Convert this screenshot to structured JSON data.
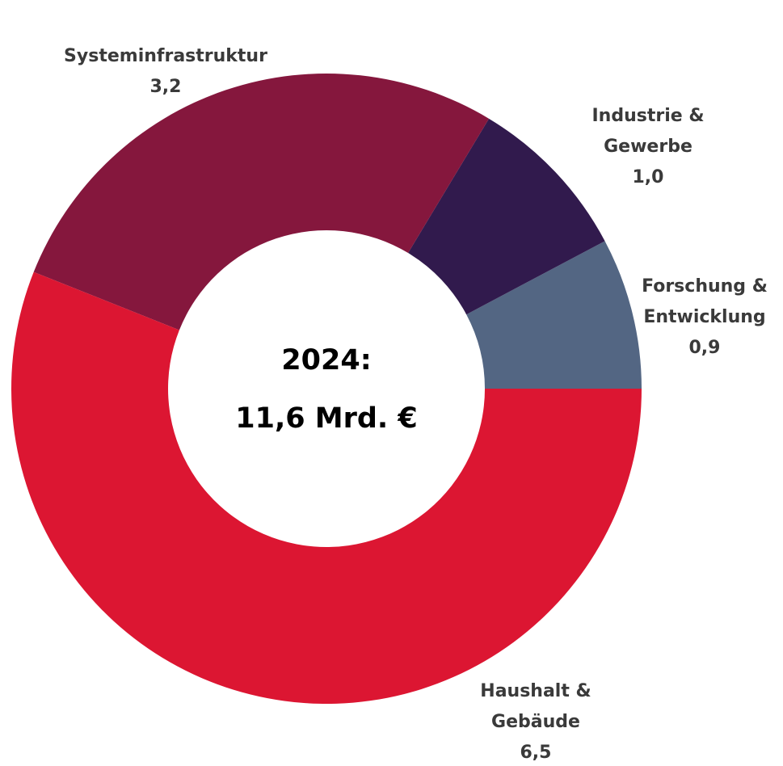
{
  "chart_data": {
    "type": "donut",
    "title": "2024:",
    "subtitle": "11,6 Mrd. €",
    "categories": [
      "Forschung & Entwicklung",
      "Industrie & Gewerbe",
      "Systeminfrastruktur",
      "Haushalt & Gebäude"
    ],
    "values": [
      0.9,
      1.0,
      3.2,
      6.5
    ],
    "value_labels": [
      "0,9",
      "1,0",
      "3,2",
      "6,5"
    ],
    "colors": [
      "#536683",
      "#311a4d",
      "#85173d",
      "#dc1632"
    ]
  }
}
